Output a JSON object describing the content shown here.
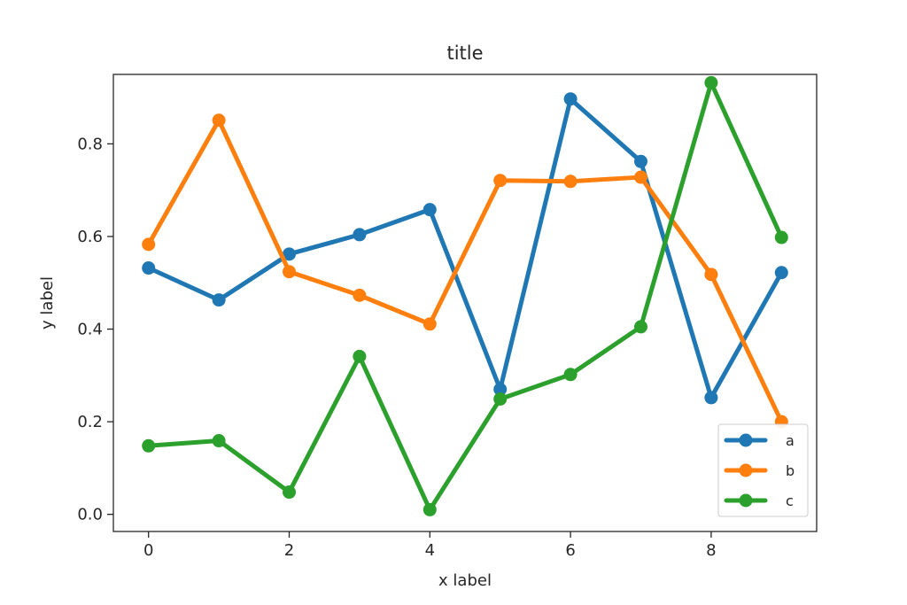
{
  "chart_data": {
    "type": "line",
    "title": "title",
    "xlabel": "x label",
    "ylabel": "y label",
    "x": [
      0,
      1,
      2,
      3,
      4,
      5,
      6,
      7,
      8,
      9
    ],
    "xlim": [
      -0.5,
      9.5
    ],
    "ylim": [
      -0.037,
      0.95
    ],
    "xticks": [
      0,
      2,
      4,
      6,
      8
    ],
    "xtick_labels": [
      "0",
      "2",
      "4",
      "6",
      "8"
    ],
    "yticks": [
      0.0,
      0.2,
      0.4,
      0.6,
      0.8
    ],
    "ytick_labels": [
      "0.0",
      "0.2",
      "0.4",
      "0.6",
      "0.8"
    ],
    "grid": false,
    "legend_position": "lower right",
    "series": [
      {
        "name": "a",
        "color": "#1f77b4",
        "marker": "circle",
        "values": [
          0.532,
          0.463,
          0.562,
          0.604,
          0.658,
          0.27,
          0.897,
          0.762,
          0.252,
          0.522
        ]
      },
      {
        "name": "b",
        "color": "#ff7f0e",
        "marker": "circle",
        "values": [
          0.583,
          0.851,
          0.524,
          0.473,
          0.411,
          0.721,
          0.719,
          0.728,
          0.518,
          0.2
        ]
      },
      {
        "name": "c",
        "color": "#2ca02c",
        "marker": "circle",
        "values": [
          0.148,
          0.159,
          0.048,
          0.341,
          0.01,
          0.249,
          0.302,
          0.405,
          0.932,
          0.598
        ]
      }
    ]
  }
}
